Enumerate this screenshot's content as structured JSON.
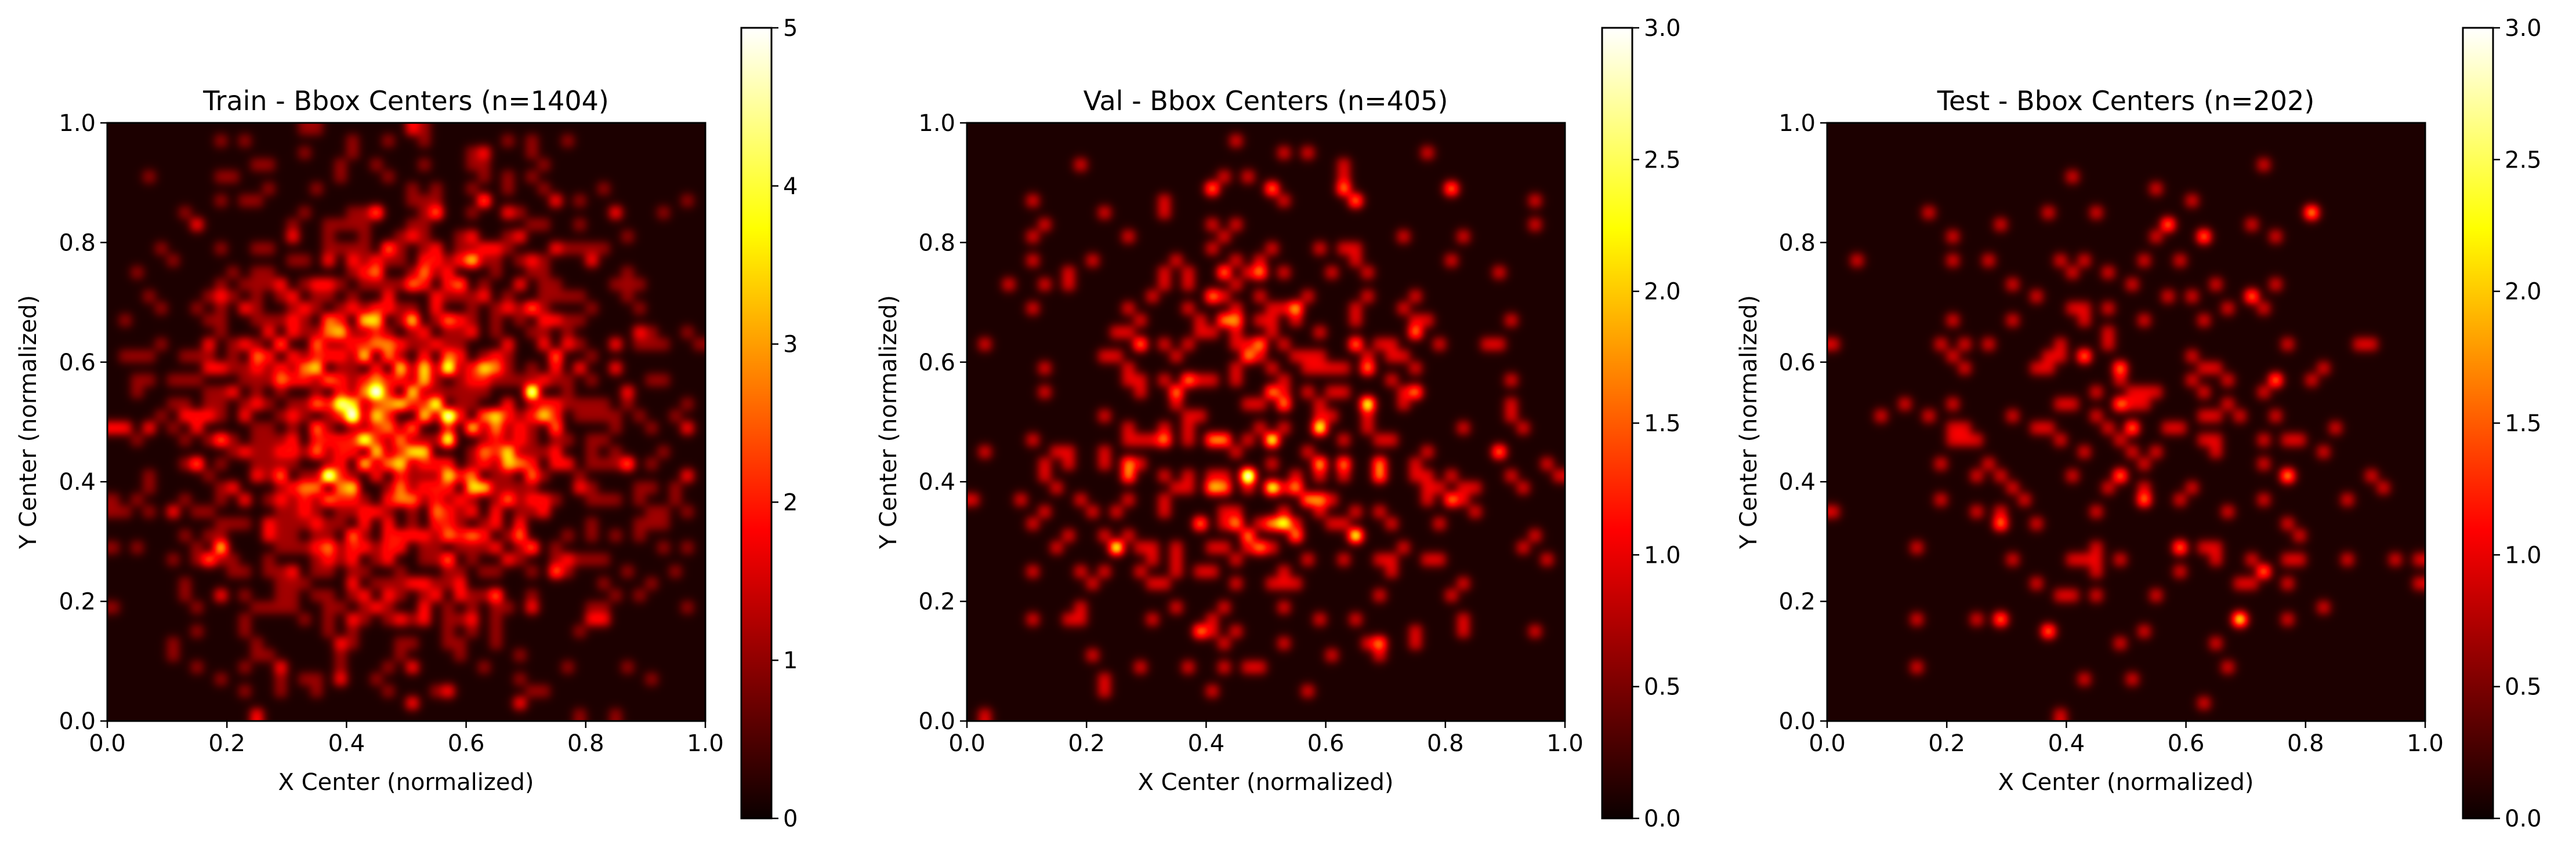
{
  "chart_data": [
    {
      "type": "heatmap",
      "title": "Train - Bbox Centers (n=1404)",
      "xlabel": "X Center (normalized)",
      "ylabel": "Y Center (normalized)",
      "xlim": [
        0,
        1
      ],
      "ylim": [
        0,
        1
      ],
      "x_ticks": [
        "0.0",
        "0.2",
        "0.4",
        "0.6",
        "0.8",
        "1.0"
      ],
      "y_ticks": [
        "0.0",
        "0.2",
        "0.4",
        "0.6",
        "0.8",
        "1.0"
      ],
      "colormap": "hot",
      "colorbar_range": [
        0,
        5
      ],
      "colorbar_ticks": [
        "0",
        "1",
        "2",
        "3",
        "4",
        "5"
      ],
      "n": 1404,
      "center": [
        0.5,
        0.5
      ],
      "spread": 0.22,
      "hotspots": [
        [
          0.55,
          0.53
        ],
        [
          0.58,
          0.47
        ],
        [
          0.66,
          0.42
        ],
        [
          0.38,
          0.65
        ],
        [
          0.52,
          0.57
        ]
      ],
      "grid": false
    },
    {
      "type": "heatmap",
      "title": "Val - Bbox Centers (n=405)",
      "xlabel": "X Center (normalized)",
      "ylabel": "Y Center (normalized)",
      "xlim": [
        0,
        1
      ],
      "ylim": [
        0,
        1
      ],
      "x_ticks": [
        "0.0",
        "0.2",
        "0.4",
        "0.6",
        "0.8",
        "1.0"
      ],
      "y_ticks": [
        "0.0",
        "0.2",
        "0.4",
        "0.6",
        "0.8",
        "1.0"
      ],
      "colormap": "hot",
      "colorbar_range": [
        0,
        3
      ],
      "colorbar_ticks": [
        "0.0",
        "0.5",
        "1.0",
        "1.5",
        "2.0",
        "2.5",
        "3.0"
      ],
      "n": 405,
      "center": [
        0.5,
        0.5
      ],
      "spread": 0.23,
      "hotspots": [
        [
          0.52,
          0.33
        ],
        [
          0.59,
          0.42
        ],
        [
          0.41,
          0.39
        ],
        [
          0.55,
          0.69
        ]
      ],
      "grid": false
    },
    {
      "type": "heatmap",
      "title": "Test - Bbox Centers (n=202)",
      "xlabel": "X Center (normalized)",
      "ylabel": "Y Center (normalized)",
      "xlim": [
        0,
        1
      ],
      "ylim": [
        0,
        1
      ],
      "x_ticks": [
        "0.0",
        "0.2",
        "0.4",
        "0.6",
        "0.8",
        "1.0"
      ],
      "y_ticks": [
        "0.0",
        "0.2",
        "0.4",
        "0.6",
        "0.8",
        "1.0"
      ],
      "colormap": "hot",
      "colorbar_range": [
        0,
        3
      ],
      "colorbar_ticks": [
        "0.0",
        "0.5",
        "1.0",
        "1.5",
        "2.0",
        "2.5",
        "3.0"
      ],
      "n": 202,
      "center": [
        0.5,
        0.5
      ],
      "spread": 0.23,
      "hotspots": [
        [
          0.69,
          0.17
        ],
        [
          0.81,
          0.85
        ],
        [
          0.76,
          0.41
        ]
      ],
      "grid": false
    }
  ]
}
